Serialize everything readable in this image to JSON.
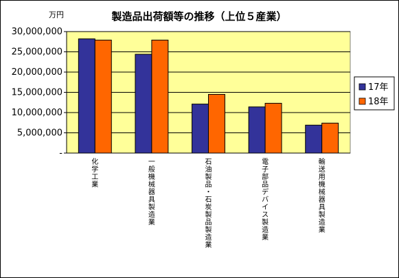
{
  "chart_data": {
    "type": "bar",
    "title": "製造品出荷額等の推移（上位５産業）",
    "unit_label": "万円",
    "categories": [
      "化学工業",
      "一般機械器具製造業",
      "石油製品・石炭製品製造業",
      "電子部品デバイス製造業",
      "輸送用機械器具製造業"
    ],
    "series": [
      {
        "name": "17年",
        "color": "#33339a",
        "values": [
          28200000,
          24400000,
          12100000,
          11400000,
          6900000
        ]
      },
      {
        "name": "18年",
        "color": "#ff6600",
        "values": [
          27900000,
          27900000,
          14500000,
          12300000,
          7400000
        ]
      }
    ],
    "ylim": [
      0,
      30000000
    ],
    "y_ticks": [
      {
        "value": 0,
        "label": "-"
      },
      {
        "value": 5000000,
        "label": "5,000,000"
      },
      {
        "value": 10000000,
        "label": "10,000,000"
      },
      {
        "value": 15000000,
        "label": "15,000,000"
      },
      {
        "value": 20000000,
        "label": "20,000,000"
      },
      {
        "value": 25000000,
        "label": "25,000,000"
      },
      {
        "value": 30000000,
        "label": "30,000,000"
      }
    ],
    "grid": true,
    "plot_background": "#ffff99",
    "legend_position": "right"
  }
}
